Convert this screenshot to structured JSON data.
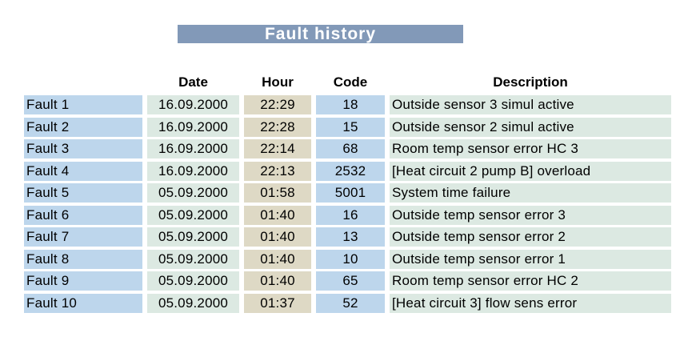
{
  "title": "Fault history",
  "table": {
    "headers": {
      "label": "",
      "date": "Date",
      "hour": "Hour",
      "code": "Code",
      "description": "Description"
    },
    "rows": [
      {
        "label": "Fault 1",
        "date": "16.09.2000",
        "hour": "22:29",
        "code": "18",
        "description": "Outside sensor 3 simul active"
      },
      {
        "label": "Fault 2",
        "date": "16.09.2000",
        "hour": "22:28",
        "code": "15",
        "description": "Outside sensor 2 simul active"
      },
      {
        "label": "Fault 3",
        "date": "16.09.2000",
        "hour": "22:14",
        "code": "68",
        "description": "Room temp sensor error HC 3"
      },
      {
        "label": "Fault 4",
        "date": "16.09.2000",
        "hour": "22:13",
        "code": "2532",
        "description": "[Heat circuit 2 pump B] overload"
      },
      {
        "label": "Fault 5",
        "date": "05.09.2000",
        "hour": "01:58",
        "code": "5001",
        "description": "System time failure"
      },
      {
        "label": "Fault 6",
        "date": "05.09.2000",
        "hour": "01:40",
        "code": "16",
        "description": "Outside temp sensor error 3"
      },
      {
        "label": "Fault 7",
        "date": "05.09.2000",
        "hour": "01:40",
        "code": "13",
        "description": "Outside temp sensor error 2"
      },
      {
        "label": "Fault 8",
        "date": "05.09.2000",
        "hour": "01:40",
        "code": "10",
        "description": "Outside temp sensor error 1"
      },
      {
        "label": "Fault 9",
        "date": "05.09.2000",
        "hour": "01:40",
        "code": "65",
        "description": "Room temp sensor error HC 2"
      },
      {
        "label": "Fault 10",
        "date": "05.09.2000",
        "hour": "01:37",
        "code": "52",
        "description": "[Heat circuit 3] flow sens error"
      }
    ]
  },
  "colors": {
    "banner": "#8299b8",
    "blue_cell": "#bdd6ec",
    "green_cell": "#dce9e2",
    "tan_cell": "#ded9c5"
  }
}
